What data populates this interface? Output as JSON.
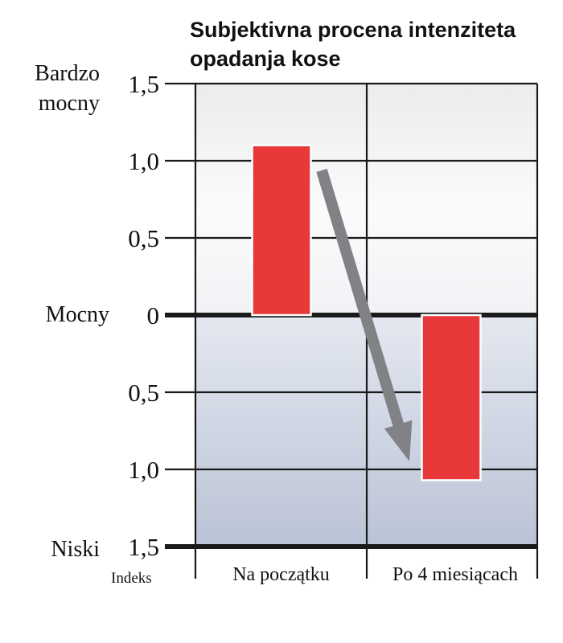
{
  "chart_data": {
    "type": "bar",
    "title": "Subjektivna procena intenziteta opadanja kose",
    "title_lines": [
      "Subjektivna procena intenziteta",
      "opadanja kose"
    ],
    "categories": [
      "Na początku",
      "Po 4 miesiącach"
    ],
    "values": [
      1.1,
      -1.07
    ],
    "ylim": [
      -1.5,
      1.5
    ],
    "y_ticks": [
      {
        "value": 1.5,
        "label": "1,5"
      },
      {
        "value": 1.0,
        "label": "1,0"
      },
      {
        "value": 0.5,
        "label": "0,5"
      },
      {
        "value": 0,
        "label": "0"
      },
      {
        "value": -0.5,
        "label": "0,5"
      },
      {
        "value": -1.0,
        "label": "1,0"
      },
      {
        "value": -1.5,
        "label": "1,5"
      }
    ],
    "y_side_labels": {
      "top": [
        "Bardzo",
        "mocny"
      ],
      "middle": "Mocny",
      "bottom": "Niski"
    },
    "x_axis_caption": "Indeks",
    "grid": true,
    "bar_color": "#e8383a",
    "arrow_color": "#808285",
    "background_top": "#efeff1",
    "background_bottom": "#bcc5d8"
  }
}
